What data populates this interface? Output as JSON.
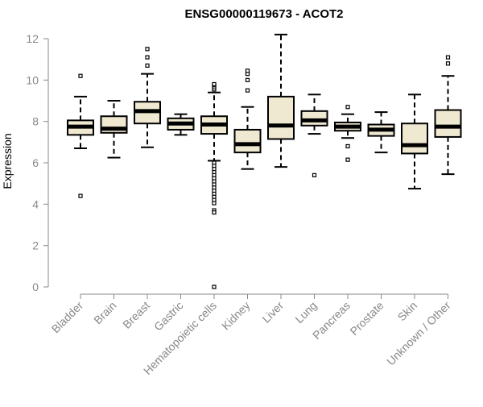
{
  "chart_data": {
    "type": "boxplot",
    "title": "ENSG00000119673 - ACOT2",
    "xlabel": "",
    "ylabel": "Expression",
    "ylim": [
      0,
      12
    ],
    "yticks": [
      0,
      2,
      4,
      6,
      8,
      10,
      12
    ],
    "grid": false,
    "colors": {
      "box_fill": "#efe9d2",
      "stroke": "#000000",
      "axis": "#888888",
      "label": "#888888"
    },
    "categories": [
      "Bladder",
      "Brain",
      "Breast",
      "Gastric",
      "Hematopoietic cells",
      "Kidney",
      "Liver",
      "Lung",
      "Pancreas",
      "Prostate",
      "Skin",
      "Unknown / Other"
    ],
    "boxes": [
      {
        "q1": 7.35,
        "median": 7.75,
        "q3": 8.05,
        "whisker_low": 6.7,
        "whisker_high": 9.2,
        "outliers": [
          10.2,
          4.4
        ]
      },
      {
        "q1": 7.45,
        "median": 7.65,
        "q3": 8.25,
        "whisker_low": 6.25,
        "whisker_high": 9.0,
        "outliers": []
      },
      {
        "q1": 7.9,
        "median": 8.5,
        "q3": 8.95,
        "whisker_low": 6.75,
        "whisker_high": 10.3,
        "outliers": [
          10.7,
          11.1,
          11.5
        ]
      },
      {
        "q1": 7.6,
        "median": 7.9,
        "q3": 8.15,
        "whisker_low": 7.35,
        "whisker_high": 8.35,
        "outliers": []
      },
      {
        "q1": 7.4,
        "median": 7.85,
        "q3": 8.25,
        "whisker_low": 6.1,
        "whisker_high": 9.4,
        "outliers": [
          9.55,
          9.65,
          9.75,
          9.8,
          6.0,
          5.85,
          5.7,
          5.55,
          5.4,
          5.25,
          5.1,
          4.95,
          4.8,
          4.65,
          4.5,
          4.35,
          4.2,
          4.05,
          3.7,
          3.6,
          0.0
        ]
      },
      {
        "q1": 6.5,
        "median": 6.9,
        "q3": 7.6,
        "whisker_low": 5.7,
        "whisker_high": 8.7,
        "outliers": [
          9.5,
          10.0,
          10.3,
          10.45
        ]
      },
      {
        "q1": 7.15,
        "median": 7.8,
        "q3": 9.2,
        "whisker_low": 5.8,
        "whisker_high": 12.2,
        "outliers": []
      },
      {
        "q1": 7.8,
        "median": 8.05,
        "q3": 8.5,
        "whisker_low": 7.4,
        "whisker_high": 9.3,
        "outliers": [
          5.4
        ]
      },
      {
        "q1": 7.55,
        "median": 7.75,
        "q3": 7.95,
        "whisker_low": 7.2,
        "whisker_high": 8.35,
        "outliers": [
          8.7,
          6.8,
          6.15
        ]
      },
      {
        "q1": 7.3,
        "median": 7.6,
        "q3": 7.85,
        "whisker_low": 6.5,
        "whisker_high": 8.45,
        "outliers": []
      },
      {
        "q1": 6.45,
        "median": 6.85,
        "q3": 7.9,
        "whisker_low": 4.75,
        "whisker_high": 9.3,
        "outliers": []
      },
      {
        "q1": 7.25,
        "median": 7.75,
        "q3": 8.55,
        "whisker_low": 5.45,
        "whisker_high": 10.2,
        "outliers": [
          10.8,
          11.1
        ]
      }
    ]
  }
}
